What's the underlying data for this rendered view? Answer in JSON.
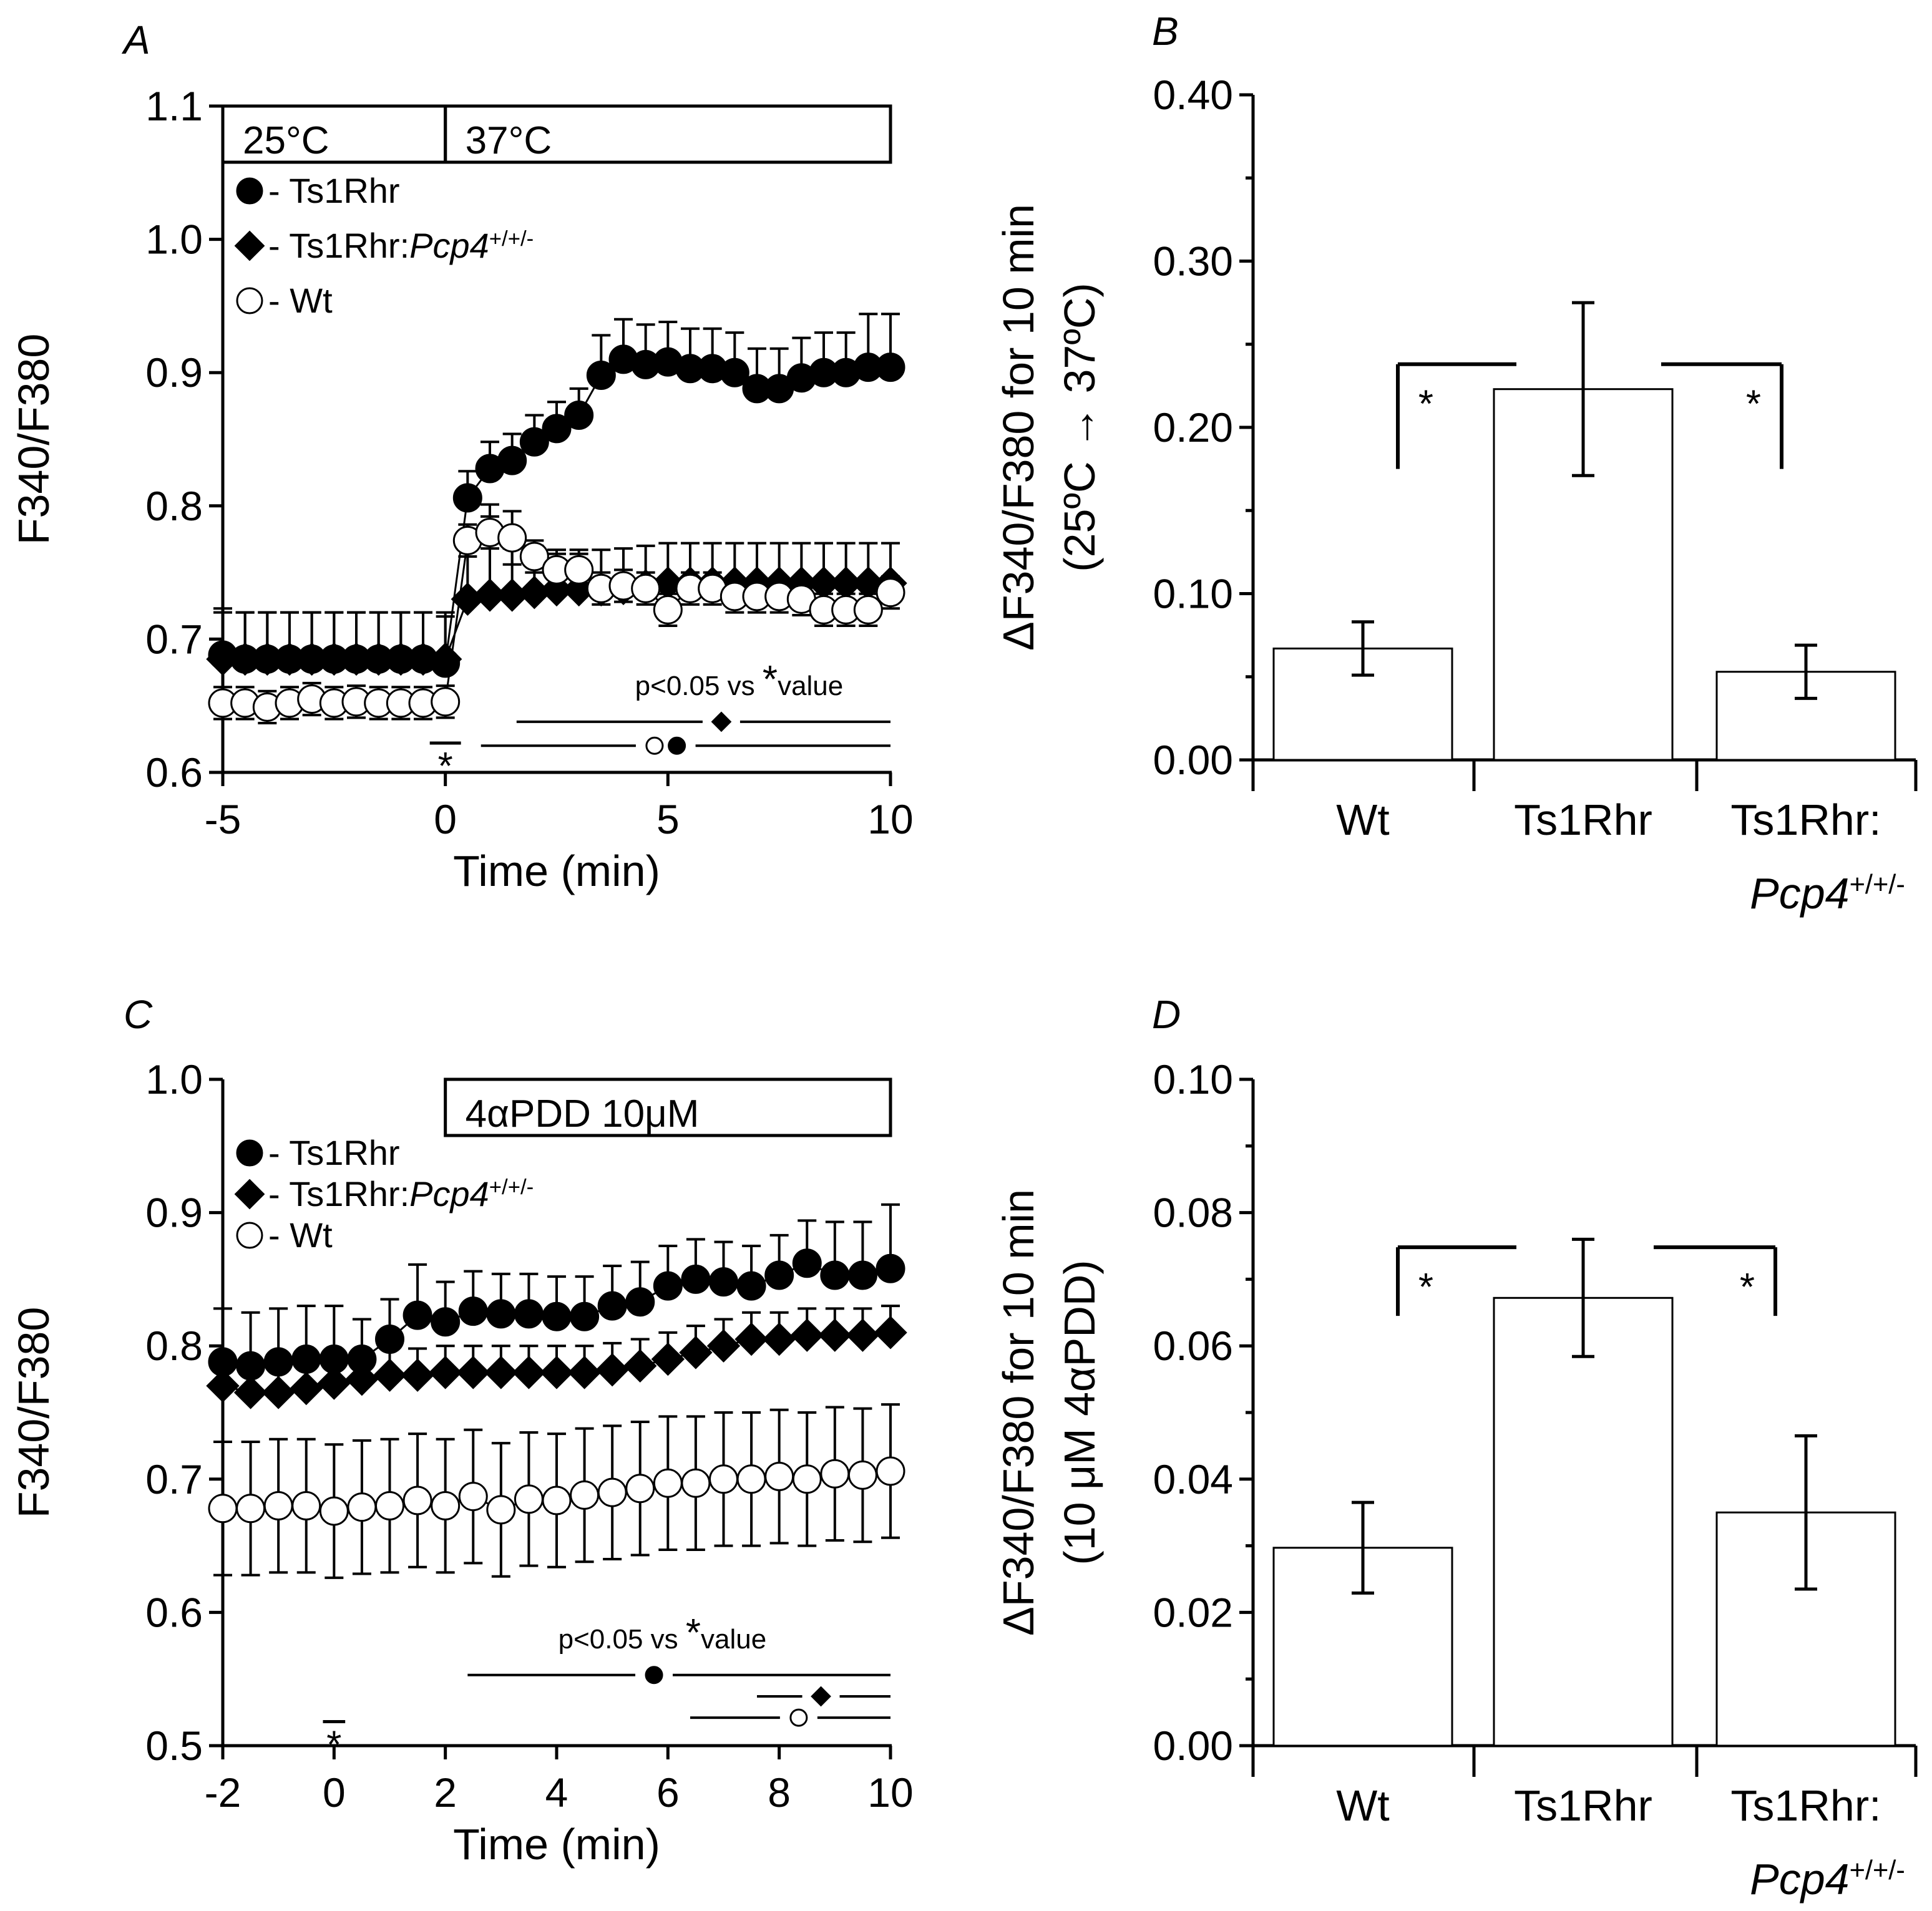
{
  "chart_data": [
    {
      "type": "line",
      "panel_label": "A",
      "xlabel": "Time (min)",
      "ylabel": "F340/F380",
      "xlim": [
        -5,
        10
      ],
      "ylim": [
        0.6,
        1.1
      ],
      "xticks": [
        -5,
        0,
        5,
        10
      ],
      "yticks": [
        0.6,
        0.7,
        0.8,
        0.9,
        1.0,
        1.1
      ],
      "ytick_labels": [
        "0.6",
        "0.7",
        "0.8",
        "0.9",
        "1.0",
        "1.1"
      ],
      "condition_boxes": [
        {
          "label": "25°C",
          "x_start": -5,
          "x_end": 0
        },
        {
          "label": "37°C",
          "x_start": 0,
          "x_end": 10
        }
      ],
      "legend": [
        {
          "marker": "filled-circle",
          "prefix": "- ",
          "name": "Ts1Rhr",
          "italic": "",
          "sup": ""
        },
        {
          "marker": "filled-diamond",
          "prefix": "- ",
          "name": "Ts1Rhr:",
          "italic": "Pcp4",
          "sup": "+/+/-"
        },
        {
          "marker": "open-circle",
          "prefix": "- ",
          "name": "Wt",
          "italic": "",
          "sup": ""
        }
      ],
      "series": [
        {
          "name": "Ts1Rhr",
          "marker": "filled-circle",
          "x": [
            -5,
            -4.5,
            -4,
            -3.5,
            -3,
            -2.5,
            -2,
            -1.5,
            -1,
            -0.5,
            0,
            0.5,
            1,
            1.5,
            2,
            2.5,
            3,
            3.5,
            4,
            4.5,
            5,
            5.5,
            6,
            6.5,
            7,
            7.5,
            8,
            8.5,
            9,
            9.5,
            10
          ],
          "y": [
            0.688,
            0.685,
            0.685,
            0.685,
            0.685,
            0.685,
            0.685,
            0.685,
            0.685,
            0.685,
            0.682,
            0.806,
            0.828,
            0.834,
            0.848,
            0.858,
            0.868,
            0.898,
            0.91,
            0.906,
            0.908,
            0.903,
            0.903,
            0.9,
            0.888,
            0.888,
            0.896,
            0.9,
            0.9,
            0.904,
            0.904
          ],
          "err": [
            0.035,
            0.035,
            0.035,
            0.035,
            0.035,
            0.035,
            0.035,
            0.035,
            0.035,
            0.035,
            0.035,
            0.02,
            0.02,
            0.02,
            0.02,
            0.02,
            0.02,
            0.03,
            0.03,
            0.03,
            0.03,
            0.03,
            0.03,
            0.03,
            0.03,
            0.03,
            0.03,
            0.03,
            0.03,
            0.04,
            0.04
          ]
        },
        {
          "name": "Ts1Rhr:Pcp4+/+/-",
          "marker": "filled-diamond",
          "x": [
            -5,
            -4.5,
            -4,
            -3.5,
            -3,
            -2.5,
            -2,
            -1.5,
            -1,
            -0.5,
            0,
            0.5,
            1,
            1.5,
            2,
            2.5,
            3,
            3.5,
            4,
            4.5,
            5,
            5.5,
            6,
            6.5,
            7,
            7.5,
            8,
            8.5,
            9,
            9.5,
            10
          ],
          "y": [
            0.685,
            0.685,
            0.685,
            0.685,
            0.685,
            0.685,
            0.685,
            0.685,
            0.685,
            0.685,
            0.685,
            0.73,
            0.733,
            0.733,
            0.735,
            0.737,
            0.737,
            0.737,
            0.738,
            0.74,
            0.742,
            0.742,
            0.742,
            0.742,
            0.742,
            0.742,
            0.742,
            0.742,
            0.742,
            0.742,
            0.742
          ],
          "err": [
            0.035,
            0.035,
            0.035,
            0.035,
            0.035,
            0.035,
            0.035,
            0.035,
            0.035,
            0.035,
            0.035,
            0.05,
            0.068,
            0.035,
            0.035,
            0.03,
            0.03,
            0.03,
            0.03,
            0.03,
            0.03,
            0.03,
            0.03,
            0.03,
            0.03,
            0.03,
            0.03,
            0.03,
            0.03,
            0.03,
            0.03
          ]
        },
        {
          "name": "Wt",
          "marker": "open-circle",
          "x": [
            -5,
            -4.5,
            -4,
            -3.5,
            -3,
            -2.5,
            -2,
            -1.5,
            -1,
            -0.5,
            0,
            0.5,
            1,
            1.5,
            2,
            2.5,
            3,
            3.5,
            4,
            4.5,
            5,
            5.5,
            6,
            6.5,
            7,
            7.5,
            8,
            8.5,
            9,
            9.5,
            10
          ],
          "y": [
            0.652,
            0.652,
            0.649,
            0.652,
            0.655,
            0.652,
            0.653,
            0.652,
            0.652,
            0.652,
            0.653,
            0.774,
            0.78,
            0.776,
            0.762,
            0.752,
            0.752,
            0.738,
            0.74,
            0.738,
            0.722,
            0.738,
            0.738,
            0.732,
            0.732,
            0.732,
            0.73,
            0.722,
            0.722,
            0.722,
            0.735
          ],
          "err": [
            0.012,
            0.012,
            0.012,
            0.012,
            0.012,
            0.012,
            0.012,
            0.012,
            0.012,
            0.012,
            0.012,
            0.012,
            0.012,
            0.02,
            0.012,
            0.012,
            0.012,
            0.012,
            0.012,
            0.012,
            0.012,
            0.012,
            0.012,
            0.012,
            0.012,
            0.012,
            0.012,
            0.012,
            0.012,
            0.012,
            0.012
          ]
        }
      ],
      "sig_note": {
        "prefix": "p<0.05 vs ",
        "star": "*",
        "suffix": "value",
        "x": 6.6,
        "y": 0.658
      },
      "sig_bars": [
        {
          "x_start": 1.6,
          "x_end": 10,
          "y": 0.638,
          "marker": "filled-diamond",
          "marker_x": [
            6.2
          ]
        },
        {
          "x_start": 0.8,
          "x_end": 10,
          "y": 0.62,
          "marker": "circles",
          "marker_x": [
            4.7,
            5.2
          ]
        }
      ],
      "baseline_mark": {
        "label": "*",
        "x_start": -0.35,
        "x_end": 0.35,
        "y": 0.622
      }
    },
    {
      "type": "bar",
      "panel_label": "B",
      "ylabel": "ΔF340/F380 for 10 min",
      "ylabel2": "(25ºC → 37ºC)",
      "ylim": [
        0,
        0.4
      ],
      "yticks": [
        0,
        0.1,
        0.2,
        0.3,
        0.4
      ],
      "ytick_labels": [
        "0.00",
        "0.10",
        "0.20",
        "0.30",
        "0.40"
      ],
      "categories": [
        {
          "label": "Wt",
          "italic": "",
          "sup": ""
        },
        {
          "label": "Ts1Rhr",
          "italic": "",
          "sup": ""
        },
        {
          "label": "Ts1Rhr:",
          "italic": "Pcp4",
          "sup": "+/+/-"
        }
      ],
      "values": [
        0.067,
        0.223,
        0.053
      ],
      "errors": [
        0.016,
        0.052,
        0.016
      ],
      "significance": [
        {
          "from": 0,
          "to": 1,
          "label": "*",
          "y_top": 0.238,
          "y_drop": 0.175
        },
        {
          "from": 2,
          "to": 1,
          "label": "*",
          "y_top": 0.238,
          "y_drop": 0.175
        }
      ]
    },
    {
      "type": "line",
      "panel_label": "C",
      "xlabel": "Time (min)",
      "ylabel": "F340/F380",
      "xlim": [
        -2,
        10
      ],
      "ylim": [
        0.5,
        1.0
      ],
      "xticks": [
        -2,
        0,
        2,
        4,
        6,
        8,
        10
      ],
      "yticks": [
        0.5,
        0.6,
        0.7,
        0.8,
        0.9,
        1.0
      ],
      "ytick_labels": [
        "0.5",
        "0.6",
        "0.7",
        "0.8",
        "0.9",
        "1.0"
      ],
      "condition_boxes": [
        {
          "label": "4αPDD 10μM",
          "x_start": 2,
          "x_end": 10
        }
      ],
      "legend": [
        {
          "marker": "filled-circle",
          "prefix": "- ",
          "name": "Ts1Rhr",
          "italic": "",
          "sup": ""
        },
        {
          "marker": "filled-diamond",
          "prefix": "- ",
          "name": "Ts1Rhr:",
          "italic": "Pcp4",
          "sup": "+/+/-"
        },
        {
          "marker": "open-circle",
          "prefix": "- ",
          "name": "Wt",
          "italic": "",
          "sup": ""
        }
      ],
      "series": [
        {
          "name": "Ts1Rhr",
          "marker": "filled-circle",
          "x": [
            -2,
            -1.5,
            -1,
            -0.5,
            0,
            0.5,
            1,
            1.5,
            2,
            2.5,
            3,
            3.5,
            4,
            4.5,
            5,
            5.5,
            6,
            6.5,
            7,
            7.5,
            8,
            8.5,
            9,
            9.5,
            10
          ],
          "y": [
            0.788,
            0.785,
            0.788,
            0.79,
            0.79,
            0.79,
            0.805,
            0.823,
            0.818,
            0.826,
            0.824,
            0.824,
            0.822,
            0.822,
            0.83,
            0.833,
            0.845,
            0.85,
            0.848,
            0.845,
            0.853,
            0.862,
            0.853,
            0.853,
            0.858
          ],
          "err": [
            0.04,
            0.04,
            0.04,
            0.04,
            0.04,
            0.03,
            0.03,
            0.038,
            0.03,
            0.03,
            0.03,
            0.03,
            0.03,
            0.03,
            0.03,
            0.03,
            0.03,
            0.03,
            0.03,
            0.03,
            0.03,
            0.032,
            0.04,
            0.04,
            0.048
          ]
        },
        {
          "name": "Ts1Rhr:Pcp4+/+/-",
          "marker": "filled-diamond",
          "x": [
            -2,
            -1.5,
            -1,
            -0.5,
            0,
            0.5,
            1,
            1.5,
            2,
            2.5,
            3,
            3.5,
            4,
            4.5,
            5,
            5.5,
            6,
            6.5,
            7,
            7.5,
            8,
            8.5,
            9,
            9.5,
            10
          ],
          "y": [
            0.77,
            0.765,
            0.765,
            0.768,
            0.772,
            0.775,
            0.778,
            0.778,
            0.78,
            0.78,
            0.78,
            0.78,
            0.78,
            0.78,
            0.782,
            0.785,
            0.79,
            0.795,
            0.8,
            0.805,
            0.805,
            0.808,
            0.808,
            0.808,
            0.81
          ],
          "err": [
            0.02,
            0.02,
            0.02,
            0.02,
            0.02,
            0.02,
            0.02,
            0.02,
            0.02,
            0.02,
            0.02,
            0.02,
            0.02,
            0.02,
            0.02,
            0.02,
            0.02,
            0.02,
            0.02,
            0.02,
            0.02,
            0.02,
            0.02,
            0.02,
            0.02
          ]
        },
        {
          "name": "Wt",
          "marker": "open-circle",
          "x": [
            -2,
            -1.5,
            -1,
            -0.5,
            0,
            0.5,
            1,
            1.5,
            2,
            2.5,
            3,
            3.5,
            4,
            4.5,
            5,
            5.5,
            6,
            6.5,
            7,
            7.5,
            8,
            8.5,
            9,
            9.5,
            10
          ],
          "y": [
            0.678,
            0.678,
            0.68,
            0.68,
            0.676,
            0.679,
            0.68,
            0.684,
            0.68,
            0.687,
            0.677,
            0.685,
            0.684,
            0.688,
            0.69,
            0.693,
            0.697,
            0.697,
            0.7,
            0.7,
            0.702,
            0.7,
            0.704,
            0.703,
            0.706
          ],
          "err": [
            0.05,
            0.05,
            0.05,
            0.05,
            0.05,
            0.05,
            0.05,
            0.05,
            0.05,
            0.05,
            0.05,
            0.05,
            0.05,
            0.05,
            0.05,
            0.05,
            0.05,
            0.05,
            0.05,
            0.05,
            0.05,
            0.05,
            0.05,
            0.05,
            0.05
          ]
        }
      ],
      "sig_note": {
        "prefix": "p<0.05 vs ",
        "star": "*",
        "suffix": "value",
        "x": 5.9,
        "y": 0.573
      },
      "sig_bars": [
        {
          "x_start": 2.4,
          "x_end": 10,
          "y": 0.553,
          "marker": "filled-circle",
          "marker_x": [
            5.75
          ]
        },
        {
          "x_start": 7.6,
          "x_end": 10,
          "y": 0.537,
          "marker": "filled-diamond",
          "marker_x": [
            8.75
          ]
        },
        {
          "x_start": 6.4,
          "x_end": 10,
          "y": 0.521,
          "marker": "open-circle",
          "marker_x": [
            8.35
          ]
        }
      ],
      "baseline_mark": {
        "label": "*",
        "x_start": -0.2,
        "x_end": 0.2,
        "y": 0.518
      }
    },
    {
      "type": "bar",
      "panel_label": "D",
      "ylabel": "ΔF340/F380 for 10 min",
      "ylabel2": "(10 μM 4αPDD)",
      "ylim": [
        0,
        0.1
      ],
      "yticks": [
        0,
        0.02,
        0.04,
        0.06,
        0.08,
        0.1
      ],
      "ytick_labels": [
        "0.00",
        "0.02",
        "0.04",
        "0.06",
        "0.08",
        "0.10"
      ],
      "categories": [
        {
          "label": "Wt",
          "italic": "",
          "sup": ""
        },
        {
          "label": "Ts1Rhr",
          "italic": "",
          "sup": ""
        },
        {
          "label": "Ts1Rhr:",
          "italic": "Pcp4",
          "sup": "+/+/-"
        }
      ],
      "values": [
        0.0297,
        0.0672,
        0.035
      ],
      "errors": [
        0.0068,
        0.0088,
        0.0115
      ],
      "significance": [
        {
          "from": 0,
          "to": 1,
          "label": "*",
          "y_top": 0.0748,
          "y_drop": 0.0645
        },
        {
          "from": 2,
          "to": 1,
          "label": "*",
          "y_top": 0.0748,
          "y_drop": 0.0645
        }
      ]
    }
  ]
}
